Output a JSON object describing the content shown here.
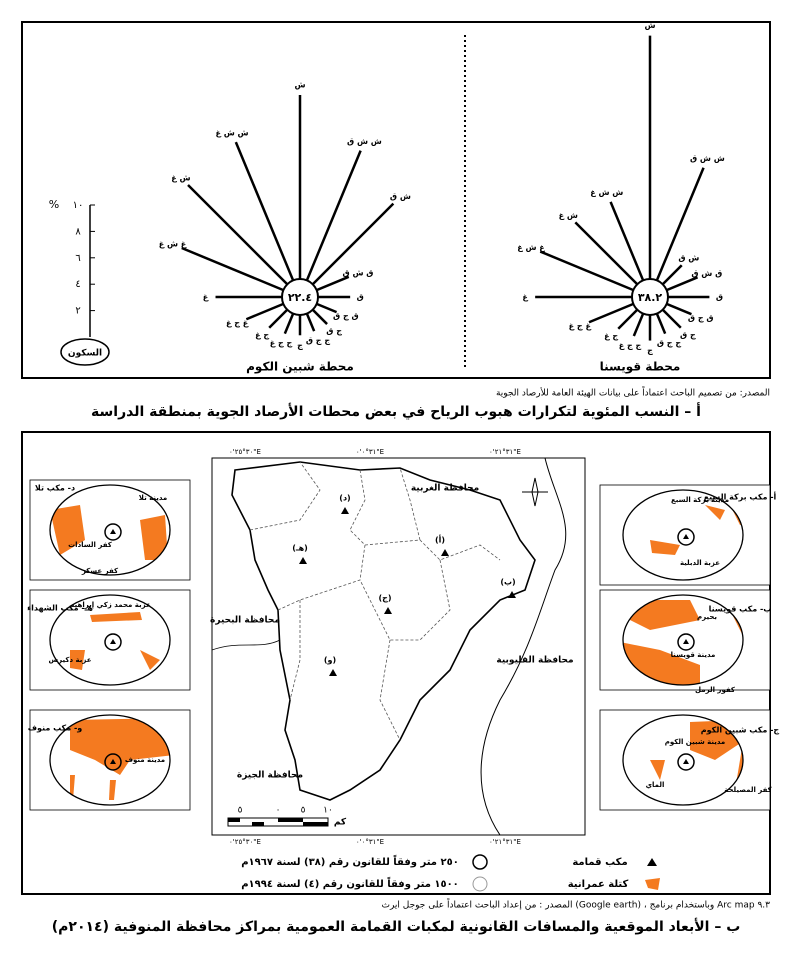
{
  "wind": {
    "scale_unit": "%",
    "scale_lim": [
      0,
      10
    ],
    "scale_ticks": [
      {
        "value": 10,
        "label": "١٠"
      },
      {
        "value": 8,
        "label": "٨"
      },
      {
        "value": 6,
        "label": "٦"
      },
      {
        "value": 4,
        "label": "٤"
      },
      {
        "value": 2,
        "label": "٢"
      }
    ],
    "calm_label": "السكون",
    "directions": [
      "ش",
      "ش ش ق",
      "ش ق",
      "ق ش ق",
      "ق",
      "ق ج ق",
      "ج ق",
      "ج ج ق",
      "ج",
      "ج ج غ",
      "ج غ",
      "غ ج غ",
      "غ",
      "غ ش غ",
      "ش غ",
      "ش ش غ"
    ],
    "stations": [
      {
        "name": "محطة شبين الكوم",
        "calm": "٢٢.٤",
        "values": [
          15.3,
          12,
          10,
          4,
          3.8,
          3,
          2.9,
          2.8,
          2.9,
          3,
          3.3,
          4.4,
          6.4,
          9.7,
          12,
          12.7
        ]
      },
      {
        "name": "محطة قويسنا",
        "calm": "٣٨.٢",
        "values": [
          19.8,
          10.6,
          3.4,
          3.9,
          4.5,
          3.4,
          3.3,
          3,
          3.3,
          3.2,
          3.4,
          5,
          8.7,
          9,
          8,
          7.8
        ]
      }
    ],
    "source": "المصدر: من تصميم الباحث اعتماداً على بيانات الهيئة العامة للأرصاد الجوية",
    "caption": "أ – النسب المئوية لتكرارات هبوب الرياح في بعض محطات الأرصاد الجوية بمنطقة الدراسة"
  },
  "map": {
    "coords_top": [
      "٣٠°٢٥'٠\"E",
      "٣١°٠'٠\"E",
      "٣١°٢١'٠\"E"
    ],
    "coords_bottom": [
      "٣٠°٢٥'٠\"E",
      "٣١°٠'٠\"E",
      "٣١°٢١'٠\"E"
    ],
    "regions": [
      "محافظة الغربية",
      "محافظة البحيرة",
      "محافظة القليوبية",
      "محافظة الجيزة"
    ],
    "sites": [
      "(أ)",
      "(ب)",
      "(ج)",
      "(د)",
      "(هـ)",
      "(و)"
    ],
    "scale_labels": [
      "١٠",
      "٥",
      "٠",
      "٥"
    ],
    "scale_unit": "كم",
    "insets": [
      {
        "title": "أ- مكب بركة السبع",
        "labels": [
          "مدينة بركة السبع",
          "عزبة الدبلية"
        ]
      },
      {
        "title": "ب- مكب قويسنا",
        "labels": [
          "بحيرم",
          "مدينة قويسنا",
          "كفور الرمل"
        ]
      },
      {
        "title": "ج- مكب شبين الكوم",
        "labels": [
          "مدينة شبين الكوم",
          "الماي",
          "كفر المصيلحة"
        ]
      },
      {
        "title": "د- مكب تلا",
        "labels": [
          "مدينة تلا",
          "كفر السادات",
          "كفر عسكر"
        ]
      },
      {
        "title": "هـ- مكب الشهداء",
        "labels": [
          "عزبة محمد زكي إبراهيم",
          "عزبة دكيرس"
        ]
      },
      {
        "title": "و- مكب منوف",
        "labels": [
          "مدينة منوف"
        ]
      }
    ],
    "legend": [
      "مكب قمامة",
      "٢٥٠ متر وفقاً للقانون رقم (٣٨) لسنة ١٩٦٧م",
      "كتلة عمرانية",
      "١٥٠٠ متر وفقاً للقانون رقم (٤) لسنة ١٩٩٤م"
    ],
    "source": "المصدر : من إعداد الباحث اعتماداً على جوجل ايرث (Google earth) ، وباستخدام برنامج Arc map ٩.٣",
    "caption": "ب – الأبعاد الموقعية والمسافات القانونية لمكبات القمامة العمومية بمراكز محافظة المنوفية (٢٠١٤م)"
  }
}
